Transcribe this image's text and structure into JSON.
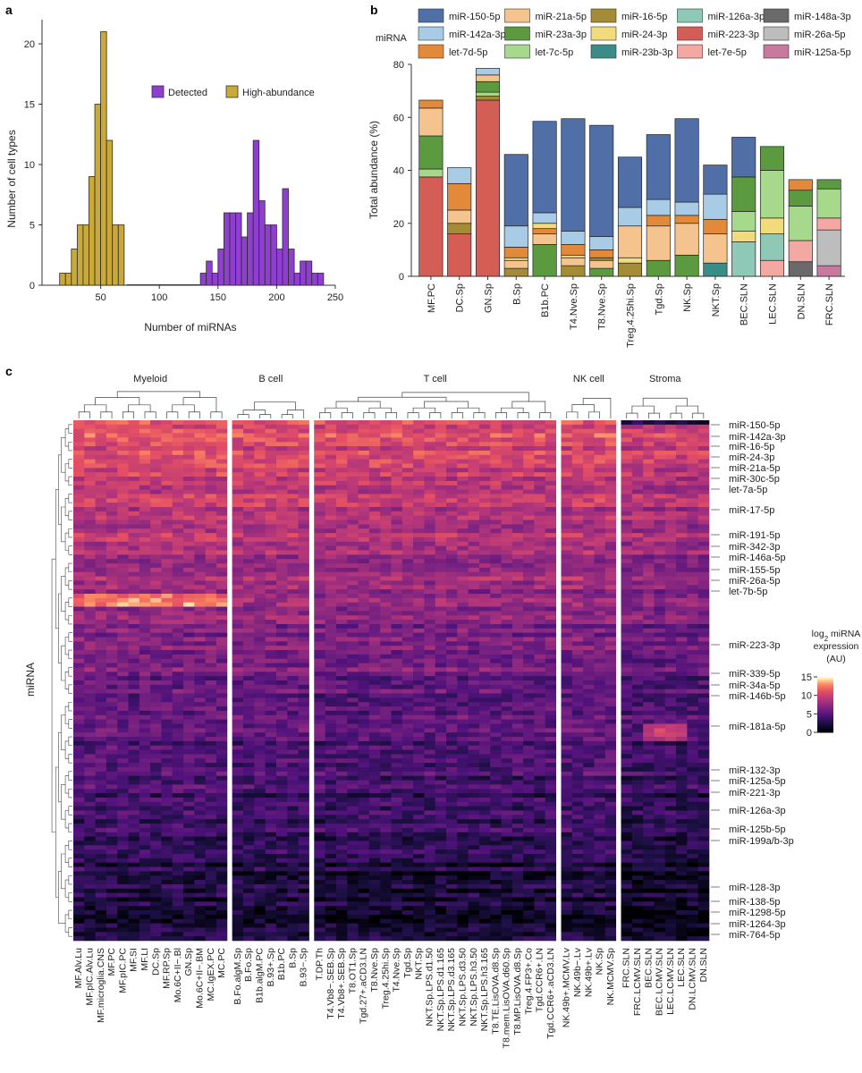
{
  "chart_data": [
    {
      "panel": "a",
      "type": "bar",
      "xlabel": "Number of miRNAs",
      "ylabel": "Number of cell types",
      "xlim": [
        0,
        250
      ],
      "ylim": [
        0,
        22
      ],
      "xticks": [
        50,
        100,
        150,
        200,
        250
      ],
      "yticks": [
        0,
        5,
        10,
        15,
        20
      ],
      "legend_position": "top-right",
      "series": [
        {
          "name": "Detected",
          "color": "#8f3fd0",
          "bins": [
            [
              135,
              140
            ],
            [
              140,
              145
            ],
            [
              145,
              150
            ],
            [
              150,
              155
            ],
            [
              155,
              160
            ],
            [
              160,
              165
            ],
            [
              165,
              170
            ],
            [
              170,
              175
            ],
            [
              175,
              180
            ],
            [
              180,
              185
            ],
            [
              185,
              190
            ],
            [
              190,
              195
            ],
            [
              195,
              200
            ],
            [
              200,
              205
            ],
            [
              205,
              210
            ],
            [
              210,
              215
            ],
            [
              215,
              220
            ],
            [
              220,
              225
            ],
            [
              225,
              230
            ],
            [
              230,
              235
            ],
            [
              235,
              240
            ]
          ],
          "counts": [
            1,
            2,
            1,
            3,
            6,
            6,
            6,
            4,
            6,
            12,
            7,
            5,
            5,
            3,
            8,
            3,
            1,
            2,
            2,
            1,
            1
          ]
        },
        {
          "name": "High-abundance",
          "color": "#c8a93a",
          "bins": [
            [
              15,
              20
            ],
            [
              20,
              25
            ],
            [
              25,
              30
            ],
            [
              30,
              35
            ],
            [
              35,
              40
            ],
            [
              40,
              45
            ],
            [
              45,
              50
            ],
            [
              50,
              55
            ],
            [
              55,
              60
            ],
            [
              60,
              65
            ],
            [
              65,
              70
            ],
            [
              70,
              75
            ]
          ],
          "counts": [
            1,
            1,
            3,
            5,
            5,
            9,
            15,
            21,
            12,
            5,
            5,
            0
          ]
        }
      ]
    },
    {
      "panel": "b",
      "type": "bar",
      "stacked": true,
      "ylabel": "Total abundance (%)",
      "ylim": [
        0,
        80
      ],
      "yticks": [
        0,
        20,
        40,
        60,
        80
      ],
      "legend_title": "miRNA",
      "categories": [
        "MF.PC",
        "DC.Sp",
        "GN.Sp",
        "B.Sp",
        "B1b.PC",
        "T4.Nve.Sp",
        "T8.Nve.Sp",
        "Treg.4.25hi.Sp",
        "Tgd.Sp",
        "NK.Sp",
        "NKT.Sp",
        "BEC.SLN",
        "LEC.SLN",
        "DN.SLN",
        "FRC.SLN"
      ],
      "legend": [
        {
          "name": "miR-150-5p",
          "color": "#4f6fa6"
        },
        {
          "name": "miR-142a-3p",
          "color": "#a8cbe6"
        },
        {
          "name": "let-7d-5p",
          "color": "#e38a3a"
        },
        {
          "name": "miR-21a-5p",
          "color": "#f5c48e"
        },
        {
          "name": "miR-23a-3p",
          "color": "#5c9a3f"
        },
        {
          "name": "let-7c-5p",
          "color": "#a6d98c"
        },
        {
          "name": "miR-16-5p",
          "color": "#a38c35"
        },
        {
          "name": "miR-24-3p",
          "color": "#f2db7d"
        },
        {
          "name": "miR-23b-3p",
          "color": "#3a8c86"
        },
        {
          "name": "miR-126a-3p",
          "color": "#90c8b8"
        },
        {
          "name": "miR-223-3p",
          "color": "#d45e55"
        },
        {
          "name": "let-7e-5p",
          "color": "#f4a8a4"
        },
        {
          "name": "miR-148a-3p",
          "color": "#6a6a6a"
        },
        {
          "name": "miR-26a-5p",
          "color": "#bdbdbd"
        },
        {
          "name": "miR-125a-5p",
          "color": "#c87a9e"
        }
      ],
      "stacks": [
        {
          "category": "MF.PC",
          "segments": [
            [
              "miR-223-3p",
              37.5
            ],
            [
              "let-7c-5p",
              3
            ],
            [
              "miR-23a-3p",
              12.5
            ],
            [
              "miR-21a-5p",
              10.5
            ],
            [
              "let-7d-5p",
              3
            ]
          ]
        },
        {
          "category": "DC.Sp",
          "segments": [
            [
              "miR-223-3p",
              16
            ],
            [
              "miR-16-5p",
              4
            ],
            [
              "miR-21a-5p",
              5
            ],
            [
              "let-7d-5p",
              10
            ],
            [
              "miR-142a-3p",
              6
            ]
          ]
        },
        {
          "category": "GN.Sp",
          "segments": [
            [
              "miR-223-3p",
              66.5
            ],
            [
              "miR-16-5p",
              1.5
            ],
            [
              "let-7c-5p",
              1.5
            ],
            [
              "miR-23a-3p",
              4
            ],
            [
              "miR-21a-5p",
              2.5
            ],
            [
              "miR-142a-3p",
              2.5
            ]
          ]
        },
        {
          "category": "B.Sp",
          "segments": [
            [
              "miR-16-5p",
              3
            ],
            [
              "miR-21a-5p",
              3
            ],
            [
              "miR-24-3p",
              1
            ],
            [
              "let-7d-5p",
              4
            ],
            [
              "miR-142a-3p",
              8
            ],
            [
              "miR-150-5p",
              27
            ]
          ]
        },
        {
          "category": "B1b.PC",
          "segments": [
            [
              "miR-23a-3p",
              12
            ],
            [
              "miR-21a-5p",
              4
            ],
            [
              "let-7d-5p",
              2
            ],
            [
              "miR-24-3p",
              2
            ],
            [
              "miR-142a-3p",
              4
            ],
            [
              "miR-150-5p",
              34.5
            ]
          ]
        },
        {
          "category": "T4.Nve.Sp",
          "segments": [
            [
              "miR-16-5p",
              4
            ],
            [
              "miR-21a-5p",
              3
            ],
            [
              "miR-24-3p",
              1
            ],
            [
              "let-7d-5p",
              4
            ],
            [
              "miR-142a-3p",
              5
            ],
            [
              "miR-150-5p",
              42.5
            ]
          ]
        },
        {
          "category": "T8.Nve.Sp",
          "segments": [
            [
              "miR-23a-3p",
              3
            ],
            [
              "miR-21a-5p",
              3
            ],
            [
              "miR-16-5p",
              1
            ],
            [
              "let-7d-5p",
              3
            ],
            [
              "miR-142a-3p",
              5
            ],
            [
              "miR-150-5p",
              42
            ]
          ]
        },
        {
          "category": "Treg.4.25hi.Sp",
          "segments": [
            [
              "miR-16-5p",
              5
            ],
            [
              "miR-24-3p",
              2
            ],
            [
              "miR-21a-5p",
              12
            ],
            [
              "miR-142a-3p",
              7
            ],
            [
              "miR-150-5p",
              19
            ]
          ]
        },
        {
          "category": "Tgd.Sp",
          "segments": [
            [
              "miR-23a-3p",
              6
            ],
            [
              "miR-21a-5p",
              13
            ],
            [
              "let-7d-5p",
              4
            ],
            [
              "miR-142a-3p",
              6
            ],
            [
              "miR-150-5p",
              24.5
            ]
          ]
        },
        {
          "category": "NK.Sp",
          "segments": [
            [
              "miR-23a-3p",
              8
            ],
            [
              "miR-21a-5p",
              12
            ],
            [
              "let-7d-5p",
              3
            ],
            [
              "miR-142a-3p",
              5
            ],
            [
              "miR-150-5p",
              31.5
            ]
          ]
        },
        {
          "category": "NKT.Sp",
          "segments": [
            [
              "miR-23b-3p",
              5
            ],
            [
              "miR-21a-5p",
              11
            ],
            [
              "let-7d-5p",
              5.5
            ],
            [
              "miR-142a-3p",
              9.5
            ],
            [
              "miR-150-5p",
              11
            ]
          ]
        },
        {
          "category": "BEC.SLN",
          "segments": [
            [
              "miR-126a-3p",
              13
            ],
            [
              "miR-24-3p",
              4
            ],
            [
              "let-7c-5p",
              7.5
            ],
            [
              "miR-23a-3p",
              13
            ],
            [
              "miR-150-5p",
              15
            ]
          ]
        },
        {
          "category": "LEC.SLN",
          "segments": [
            [
              "let-7e-5p",
              6
            ],
            [
              "miR-126a-3p",
              10
            ],
            [
              "miR-24-3p",
              6
            ],
            [
              "let-7c-5p",
              18
            ],
            [
              "miR-23a-3p",
              9
            ]
          ]
        },
        {
          "category": "DN.SLN",
          "segments": [
            [
              "miR-148a-3p",
              5.5
            ],
            [
              "let-7e-5p",
              8
            ],
            [
              "let-7c-5p",
              13
            ],
            [
              "miR-23a-3p",
              6
            ],
            [
              "let-7d-5p",
              4
            ]
          ]
        },
        {
          "category": "FRC.SLN",
          "segments": [
            [
              "miR-125a-5p",
              4
            ],
            [
              "miR-26a-5p",
              13.5
            ],
            [
              "let-7e-5p",
              4.5
            ],
            [
              "let-7c-5p",
              11
            ],
            [
              "miR-23a-3p",
              3.5
            ]
          ]
        }
      ]
    },
    {
      "panel": "c",
      "type": "heatmap",
      "ylabel": "miRNA",
      "colorbar": {
        "title_line1": "log",
        "title_sub": "2",
        "title_rest": " miRNA",
        "title_line2": "expression",
        "title_line3": "(AU)",
        "range": [
          0,
          15
        ],
        "ticks": [
          15,
          10,
          5,
          0
        ]
      },
      "groups": [
        {
          "name": "Myeloid",
          "columns": [
            "MF.Alv.Lu",
            "MF.pIC.Alv.Lu",
            "MF.microglia.CNS",
            "MF.PC",
            "MF.pIC.PC",
            "MF.SI",
            "MF.LI",
            "DC.Sp",
            "MF.RP.Sp",
            "Mo.6C+II−.Bl",
            "GN.Sp",
            "Mo.6C+II−.BM",
            "MC.IgEX.PC",
            "MC.PC"
          ]
        },
        {
          "name": "B cell",
          "columns": [
            "B.Fo.algM.Sp",
            "B.Fo.Sp",
            "B1b.algM.PC",
            "B.93+.Sp",
            "B1b.PC",
            "B.Sp",
            "B.93−.Sp"
          ]
        },
        {
          "name": "T cell",
          "columns": [
            "T.DP.Th",
            "T4.Vb8−.SEB.Sp",
            "T4.Vb8+.SEB.Sp",
            "T8.OT1.Sp",
            "Tgd.27+.aCD3.LN",
            "T8.Nve.Sp",
            "Treg.4.25hi.Sp",
            "T4.Nve.Sp",
            "Tgd.Sp",
            "NKT.Sp",
            "NKT.Sp.LPS.d1.50",
            "NKT.Sp.LPS.d1.165",
            "NKT.Sp.LPS.d3.165",
            "NKT.Sp.LPS.d3.50",
            "NKT.Sp.LPS.h3.50",
            "NKT.Sp.LPS.h3.165",
            "T8.TE.LisOVA.d8.Sp",
            "T8.mem.LisOVA.d60.Sp",
            "T8.MP.LisOVA.d8.Sp",
            "Treg.4.FP3+.Co",
            "Tgd.CCR6+.LN",
            "Tgd.CCR6+.aCD3.LN"
          ]
        },
        {
          "name": "NK cell",
          "columns": [
            "NK.49b+.MCMV.Lv",
            "NK.49b−.Lv",
            "NK.49b+.Lv",
            "NK.Sp",
            "NK.MCMV.Sp"
          ]
        },
        {
          "name": "Stroma",
          "columns": [
            "FRC.SLN",
            "FRC.LCMV.SLN",
            "BEC.SLN",
            "BEC.LCMV.SLN",
            "LEC.LCMV.SLN",
            "LEC.SLN",
            "DN.LCMV.SLN",
            "DN.SLN"
          ]
        }
      ],
      "row_labels": [
        "miR-150-5p",
        "miR-142a-3p",
        "miR-16-5p",
        "miR-24-3p",
        "miR-21a-5p",
        "miR-30c-5p",
        "let-7a-5p",
        "miR-17-5p",
        "miR-191-5p",
        "miR-342-3p",
        "miR-146a-5p",
        "miR-155-5p",
        "miR-26a-5p",
        "let-7b-5p",
        "miR-223-3p",
        "miR-339-5p",
        "miR-34a-5p",
        "miR-146b-5p",
        "miR-181a-5p",
        "miR-132-3p",
        "miR-125a-5p",
        "miR-221-3p",
        "miR-126a-3p",
        "miR-125b-5p",
        "miR-199a/b-3p",
        "miR-128-3p",
        "miR-138-5p",
        "miR-1298-5p",
        "miR-1264-3p",
        "miR-764-5p"
      ]
    }
  ]
}
